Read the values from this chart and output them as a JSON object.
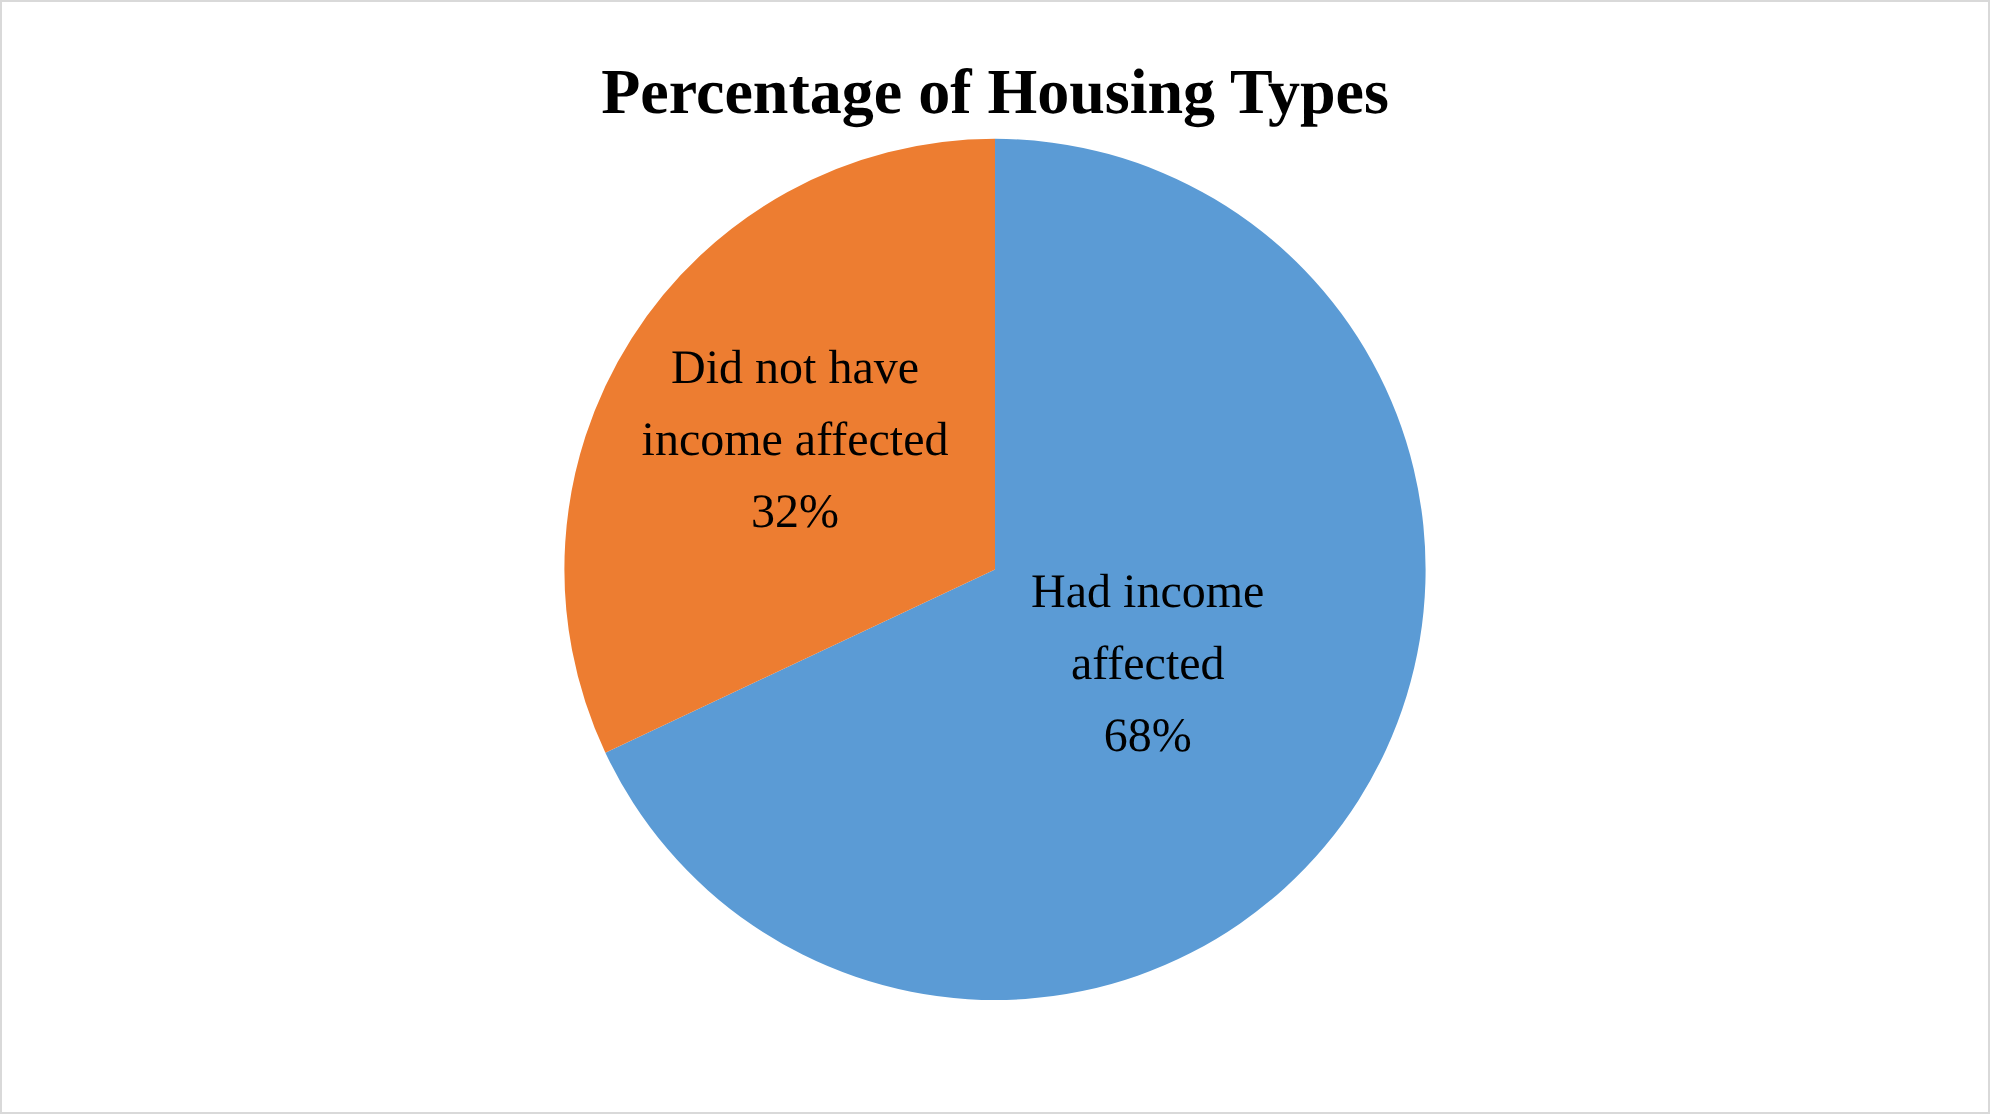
{
  "chart_data": {
    "type": "pie",
    "title": "Percentage of Housing Types",
    "categories": [
      "Had income affected",
      "Did not have income affected"
    ],
    "values": [
      68,
      32
    ],
    "colors": [
      "#5b9bd5",
      "#ed7d31"
    ],
    "value_labels": [
      "68%",
      "32%"
    ],
    "legend": false
  }
}
